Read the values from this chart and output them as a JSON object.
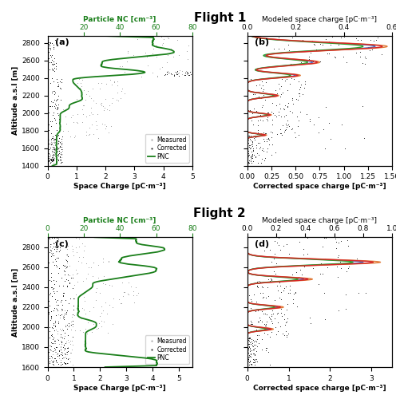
{
  "title1": "Flight 1",
  "title2": "Flight 2",
  "label_a": "(a)",
  "label_b": "(b)",
  "label_c": "(c)",
  "label_d": "(d)",
  "flight1": {
    "alt_range": [
      1400,
      2880
    ],
    "alt_ticks": [
      1400,
      1600,
      1800,
      2000,
      2200,
      2400,
      2600,
      2800
    ],
    "pnc_xlim": [
      0,
      80
    ],
    "pnc_xticks": [
      20,
      40,
      60,
      80
    ],
    "space_charge_xlim": [
      0,
      5
    ],
    "space_charge_xticks": [
      0,
      1,
      2,
      3,
      4,
      5
    ],
    "corrected_xlim": [
      0.0,
      1.5
    ],
    "corrected_xticks": [
      0.0,
      0.25,
      0.5,
      0.75,
      1.0,
      1.25,
      1.5
    ],
    "modeled_xlim": [
      0.0,
      0.6
    ],
    "modeled_xticks": [
      0.0,
      0.2,
      0.4,
      0.6
    ]
  },
  "flight2": {
    "alt_range": [
      1600,
      2900
    ],
    "alt_ticks": [
      1600,
      1800,
      2000,
      2200,
      2400,
      2600,
      2800
    ],
    "pnc_xlim": [
      0,
      80
    ],
    "pnc_xticks": [
      0,
      20,
      40,
      60,
      80
    ],
    "space_charge_xlim": [
      0,
      5.5
    ],
    "space_charge_xticks": [
      0,
      1,
      2,
      3,
      4,
      5
    ],
    "corrected_xlim": [
      0,
      3.5
    ],
    "corrected_xticks": [
      0,
      1,
      2,
      3
    ],
    "modeled_xlim": [
      0.0,
      1.0
    ],
    "modeled_xticks": [
      0.0,
      0.2,
      0.4,
      0.6,
      0.8,
      1.0
    ]
  },
  "colors": {
    "pnc_line": "#1a7f1a",
    "measured": "#999999",
    "corrected": "#111111",
    "blue_line": "#4472c4",
    "orange_line": "#e07b39",
    "green_line": "#2ca02c",
    "red_line": "#d62728"
  },
  "legend": {
    "measured": "Measured",
    "corrected": "Corrected",
    "pnc": "PNC"
  },
  "xlabel_a": "Space Charge [pC·m⁻³]",
  "xlabel_b": "Corrected space charge [pC·m⁻³]",
  "xlabel_c": "Space Charge [pC·m⁻³]",
  "xlabel_d": "Corrected space charge [pC·m⁻³]",
  "ylabel": "Altitude a.s.l [m]",
  "top_xlabel_green": "Particle NC [cm⁻³]",
  "top_xlabel_black": "Modeled space charge [pC·m⁻³]"
}
